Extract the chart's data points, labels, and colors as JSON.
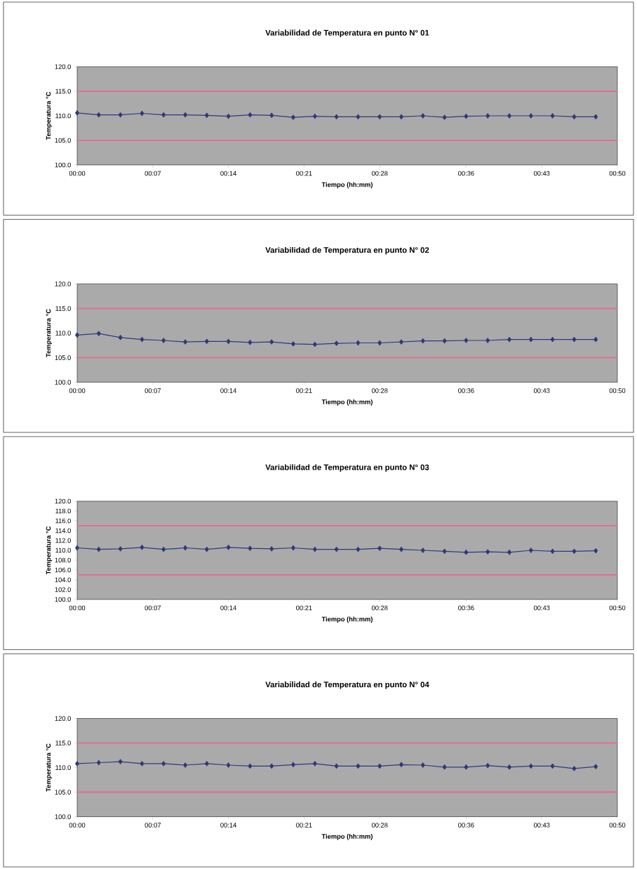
{
  "chart_data": [
    {
      "type": "line",
      "title": "Variabilidad de Temperatura en punto N° 01",
      "xlabel": "Tiempo (hh:mm)",
      "ylabel": "Temperatura °C",
      "color": "#2e3a7a",
      "marker": "diamond",
      "x": [
        0,
        0.0333,
        0.0667,
        0.1,
        0.1333,
        0.1667,
        0.2,
        0.2333,
        0.2667,
        0.3,
        0.3333,
        0.3667,
        0.4,
        0.4333,
        0.4667,
        0.5,
        0.5333,
        0.5667,
        0.6,
        0.6333,
        0.6667,
        0.7,
        0.7333,
        0.7667,
        0.8
      ],
      "values": [
        110.6,
        110.2,
        110.2,
        110.5,
        110.2,
        110.2,
        110.1,
        109.9,
        110.2,
        110.1,
        109.7,
        109.9,
        109.8,
        109.8,
        109.8,
        109.8,
        110.0,
        109.7,
        109.9,
        110.0,
        110.0,
        110.0,
        110.0,
        109.8,
        109.8
      ],
      "xlim": [
        0,
        0.8333
      ],
      "xticks": [
        {
          "value": 0,
          "label": "00:00"
        },
        {
          "value": 0.1167,
          "label": "00:07"
        },
        {
          "value": 0.2333,
          "label": "00:14"
        },
        {
          "value": 0.35,
          "label": "00:21"
        },
        {
          "value": 0.4667,
          "label": "00:28"
        },
        {
          "value": 0.6,
          "label": "00:36"
        },
        {
          "value": 0.7167,
          "label": "00:43"
        },
        {
          "value": 0.8333,
          "label": "00:50"
        }
      ],
      "ylim": [
        100,
        120
      ],
      "yticks": [
        {
          "value": 100,
          "label": "100.0"
        },
        {
          "value": 105,
          "label": "105.0"
        },
        {
          "value": 110,
          "label": "110.0"
        },
        {
          "value": 115,
          "label": "115.0"
        },
        {
          "value": 120,
          "label": "120.0"
        }
      ],
      "ref_lines": [
        {
          "axis": "y",
          "value": 115,
          "color": "#e0708e"
        },
        {
          "axis": "y",
          "value": 105,
          "color": "#e0708e"
        }
      ]
    },
    {
      "type": "line",
      "title": "Variabilidad de Temperatura en punto N° 02",
      "xlabel": "Tiempo (hh:mm)",
      "ylabel": "Temperatura °C",
      "color": "#2e3a7a",
      "marker": "diamond",
      "x": [
        0,
        0.0333,
        0.0667,
        0.1,
        0.1333,
        0.1667,
        0.2,
        0.2333,
        0.2667,
        0.3,
        0.3333,
        0.3667,
        0.4,
        0.4333,
        0.4667,
        0.5,
        0.5333,
        0.5667,
        0.6,
        0.6333,
        0.6667,
        0.7,
        0.7333,
        0.7667,
        0.8
      ],
      "values": [
        109.6,
        109.9,
        109.1,
        108.7,
        108.5,
        108.2,
        108.3,
        108.3,
        108.1,
        108.2,
        107.8,
        107.7,
        107.9,
        108.0,
        108.0,
        108.2,
        108.4,
        108.4,
        108.5,
        108.5,
        108.7,
        108.7,
        108.7,
        108.7,
        108.7
      ],
      "xlim": [
        0,
        0.8333
      ],
      "xticks": [
        {
          "value": 0,
          "label": "00:00"
        },
        {
          "value": 0.1167,
          "label": "00:07"
        },
        {
          "value": 0.2333,
          "label": "00:14"
        },
        {
          "value": 0.35,
          "label": "00:21"
        },
        {
          "value": 0.4667,
          "label": "00:28"
        },
        {
          "value": 0.6,
          "label": "00:36"
        },
        {
          "value": 0.7167,
          "label": "00:43"
        },
        {
          "value": 0.8333,
          "label": "00:50"
        }
      ],
      "ylim": [
        100,
        120
      ],
      "yticks": [
        {
          "value": 100,
          "label": "100.0"
        },
        {
          "value": 105,
          "label": "105.0"
        },
        {
          "value": 110,
          "label": "110.0"
        },
        {
          "value": 115,
          "label": "115.0"
        },
        {
          "value": 120,
          "label": "120.0"
        }
      ],
      "ref_lines": [
        {
          "axis": "y",
          "value": 115,
          "color": "#e0708e"
        },
        {
          "axis": "y",
          "value": 105,
          "color": "#e0708e"
        }
      ]
    },
    {
      "type": "line",
      "title": "Variabilidad de Temperatura en punto N° 03",
      "xlabel": "Tiempo (hh:mm)",
      "ylabel": "Temperatura °C",
      "color": "#2e3a7a",
      "marker": "diamond",
      "x": [
        0,
        0.0333,
        0.0667,
        0.1,
        0.1333,
        0.1667,
        0.2,
        0.2333,
        0.2667,
        0.3,
        0.3333,
        0.3667,
        0.4,
        0.4333,
        0.4667,
        0.5,
        0.5333,
        0.5667,
        0.6,
        0.6333,
        0.6667,
        0.7,
        0.7333,
        0.7667,
        0.8
      ],
      "values": [
        110.5,
        110.2,
        110.3,
        110.6,
        110.2,
        110.5,
        110.2,
        110.6,
        110.4,
        110.3,
        110.5,
        110.2,
        110.2,
        110.2,
        110.4,
        110.2,
        110.0,
        109.8,
        109.6,
        109.7,
        109.6,
        110.0,
        109.8,
        109.8,
        109.9
      ],
      "xlim": [
        0,
        0.8333
      ],
      "xticks": [
        {
          "value": 0,
          "label": "00:00"
        },
        {
          "value": 0.1167,
          "label": "00:07"
        },
        {
          "value": 0.2333,
          "label": "00:14"
        },
        {
          "value": 0.35,
          "label": "00:21"
        },
        {
          "value": 0.4667,
          "label": "00:28"
        },
        {
          "value": 0.6,
          "label": "00:36"
        },
        {
          "value": 0.7167,
          "label": "00:43"
        },
        {
          "value": 0.8333,
          "label": "00:50"
        }
      ],
      "ylim": [
        100,
        120
      ],
      "yticks": [
        {
          "value": 100,
          "label": "100.0"
        },
        {
          "value": 102,
          "label": "102.0"
        },
        {
          "value": 104,
          "label": "104.0"
        },
        {
          "value": 106,
          "label": "106.0"
        },
        {
          "value": 108,
          "label": "108.0"
        },
        {
          "value": 110,
          "label": "110.0"
        },
        {
          "value": 112,
          "label": "112.0"
        },
        {
          "value": 114,
          "label": "114.0"
        },
        {
          "value": 116,
          "label": "116.0"
        },
        {
          "value": 118,
          "label": "118.0"
        },
        {
          "value": 120,
          "label": "120.0"
        }
      ],
      "ref_lines": [
        {
          "axis": "y",
          "value": 115,
          "color": "#e0708e"
        },
        {
          "axis": "y",
          "value": 105,
          "color": "#e0708e"
        }
      ]
    },
    {
      "type": "line",
      "title": "Variabilidad de Temperatura en punto N° 04",
      "xlabel": "Tiempo (hh:mm)",
      "ylabel": "Temperatura °C",
      "color": "#2e3a7a",
      "marker": "diamond",
      "x": [
        0,
        0.0333,
        0.0667,
        0.1,
        0.1333,
        0.1667,
        0.2,
        0.2333,
        0.2667,
        0.3,
        0.3333,
        0.3667,
        0.4,
        0.4333,
        0.4667,
        0.5,
        0.5333,
        0.5667,
        0.6,
        0.6333,
        0.6667,
        0.7,
        0.7333,
        0.7667,
        0.8
      ],
      "values": [
        110.8,
        111.0,
        111.2,
        110.8,
        110.8,
        110.5,
        110.8,
        110.5,
        110.3,
        110.3,
        110.6,
        110.8,
        110.3,
        110.3,
        110.3,
        110.6,
        110.5,
        110.1,
        110.1,
        110.4,
        110.1,
        110.3,
        110.3,
        109.8,
        110.2
      ],
      "xlim": [
        0,
        0.8333
      ],
      "xticks": [
        {
          "value": 0,
          "label": "00:00"
        },
        {
          "value": 0.1167,
          "label": "00:07"
        },
        {
          "value": 0.2333,
          "label": "00:14"
        },
        {
          "value": 0.35,
          "label": "00:21"
        },
        {
          "value": 0.4667,
          "label": "00:28"
        },
        {
          "value": 0.6,
          "label": "00:36"
        },
        {
          "value": 0.7167,
          "label": "00:43"
        },
        {
          "value": 0.8333,
          "label": "00:50"
        }
      ],
      "ylim": [
        100,
        120
      ],
      "yticks": [
        {
          "value": 100,
          "label": "100.0"
        },
        {
          "value": 105,
          "label": "105.0"
        },
        {
          "value": 110,
          "label": "110.0"
        },
        {
          "value": 115,
          "label": "115.0"
        },
        {
          "value": 120,
          "label": "120.0"
        }
      ],
      "ref_lines": [
        {
          "axis": "y",
          "value": 115,
          "color": "#e0708e"
        },
        {
          "axis": "y",
          "value": 105,
          "color": "#e0708e"
        }
      ]
    }
  ]
}
